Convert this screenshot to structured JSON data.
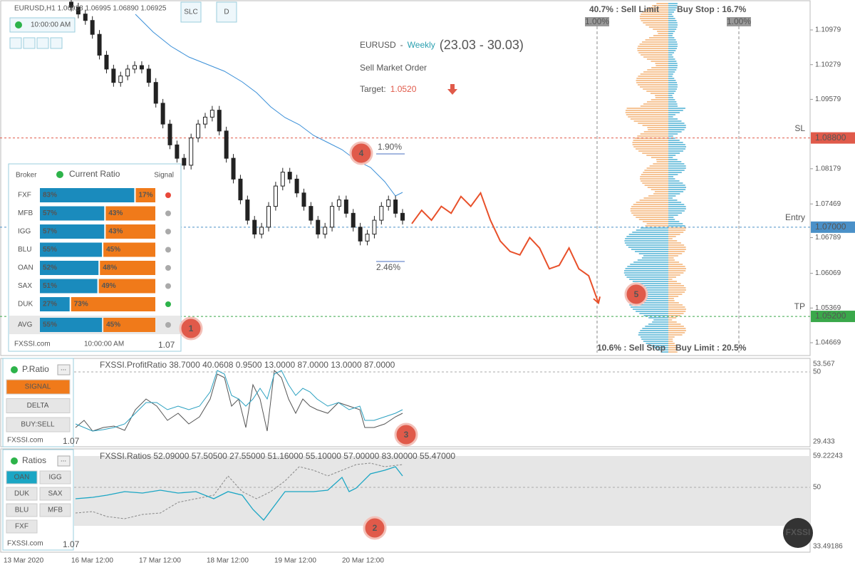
{
  "header": {
    "symbol_info": "EURUSD,H1 1.06923 1.06995 1.06890 1.06925",
    "time": "10:00:00 AM",
    "buttons": [
      "SLC",
      "D"
    ]
  },
  "forecast": {
    "symbol": "EURUSD",
    "separator": "-",
    "period": "Weekly",
    "dates": "(23.03 - 30.03)",
    "order": "Sell Market Order",
    "target_label": "Target:",
    "target": "1.0520"
  },
  "price_chart": {
    "ylim": [
      1.04396,
      1.11583
    ],
    "yticks": [
      1.10979,
      1.10279,
      1.09579,
      1.08179,
      1.07469,
      1.06789,
      1.06069,
      1.05369,
      1.04669
    ],
    "levels": [
      {
        "name": "SL",
        "price": {
          "value": 1.088,
          "label": "1.08800"
        },
        "color": "#e05a4a"
      },
      {
        "name": "Entry",
        "price": {
          "value": 1.07,
          "label": "1.07000"
        },
        "color": "#4a90c8"
      },
      {
        "name": "TP",
        "price": {
          "value": 1.052,
          "label": "1.05200"
        },
        "color": "#3aa84a"
      }
    ],
    "closes": [
      1.1144,
      1.113,
      1.1117,
      1.1089,
      1.1047,
      1.1019,
      1.0992,
      1.1005,
      1.1019,
      1.1026,
      1.1019,
      1.0992,
      1.095,
      1.0908,
      1.0866,
      1.0839,
      1.0825,
      1.088,
      1.0908,
      1.0922,
      1.0936,
      1.0894,
      1.0839,
      1.0797,
      1.0755,
      1.0714,
      1.0686,
      1.07,
      1.0742,
      1.0783,
      1.0811,
      1.0797,
      1.0769,
      1.0742,
      1.0714,
      1.0686,
      1.07,
      1.0742,
      1.0755,
      1.0728,
      1.07,
      1.0672,
      1.0686,
      1.0714,
      1.0742,
      1.0755,
      1.0728,
      1.0714
    ],
    "forecast_path": [
      1.0707,
      1.0734,
      1.0714,
      1.0742,
      1.0728,
      1.0762,
      1.0742,
      1.0769,
      1.0714,
      1.0672,
      1.0651,
      1.0644,
      1.0679,
      1.0658,
      1.0616,
      1.0623,
      1.0658,
      1.0616,
      1.0602,
      1.0547
    ],
    "annotations": [
      "1.90%",
      "2.46%"
    ],
    "dates": [
      "13 Mar 2020",
      "16 Mar 12:00",
      "17 Mar 12:00",
      "18 Mar 12:00",
      "19 Mar 12:00",
      "20 Mar 12:00"
    ]
  },
  "order_book": {
    "sell_limit": "40.7% : Sell Limit",
    "buy_stop": "Buy Stop : 16.7%",
    "sell_stop": "10.6% : Sell Stop",
    "buy_limit": "Buy Limit : 20.5%",
    "step_left": "1.00%",
    "step_right": "1.00%"
  },
  "badges": [
    "1",
    "2",
    "3",
    "4",
    "5"
  ],
  "ratio_panel": {
    "header": [
      "Broker",
      "Current Ratio",
      "Signal"
    ],
    "rows": [
      {
        "broker": "FXF",
        "buy": 83,
        "buy_label": "83%",
        "sell": 17,
        "sell_label": "17%",
        "signal_color": "#e8483a"
      },
      {
        "broker": "MFB",
        "buy": 57,
        "buy_label": "57%",
        "sell": 43,
        "sell_label": "43%",
        "signal_color": "#aaaaaa"
      },
      {
        "broker": "IGG",
        "buy": 57,
        "buy_label": "57%",
        "sell": 43,
        "sell_label": "43%",
        "signal_color": "#aaaaaa"
      },
      {
        "broker": "BLU",
        "buy": 55,
        "buy_label": "55%",
        "sell": 45,
        "sell_label": "45%",
        "signal_color": "#aaaaaa"
      },
      {
        "broker": "OAN",
        "buy": 52,
        "buy_label": "52%",
        "sell": 48,
        "sell_label": "48%",
        "signal_color": "#aaaaaa"
      },
      {
        "broker": "SAX",
        "buy": 51,
        "buy_label": "51%",
        "sell": 49,
        "sell_label": "49%",
        "signal_color": "#aaaaaa"
      },
      {
        "broker": "DUK",
        "buy": 27,
        "buy_label": "27%",
        "sell": 73,
        "sell_label": "73%",
        "signal_color": "#2db34a"
      }
    ],
    "avg": {
      "broker": "AVG",
      "buy": 55,
      "buy_label": "55%",
      "sell": 45,
      "sell_label": "45%",
      "signal_color": "#aaaaaa"
    },
    "site": "FXSSI.com",
    "time": "10:00:00 AM",
    "version": "1.07"
  },
  "profit_panel": {
    "title": "P.Ratio",
    "menu": "...",
    "buttons": [
      "SIGNAL",
      "DELTA",
      "BUY:SELL"
    ],
    "site": "FXSSI.com",
    "version": "1.07",
    "caption": "FXSSI.ProfitRatio 38.7000 40.0608 0.9500 13.0000 87.0000 13.0000 87.0000",
    "axis": [
      "53.567",
      "50",
      "29.433"
    ]
  },
  "ratios_panel": {
    "title": "Ratios",
    "menu": "...",
    "buttons": [
      "OAN",
      "IGG",
      "DUK",
      "SAX",
      "BLU",
      "MFB",
      "FXF"
    ],
    "site": "FXSSI.com",
    "version": "1.07",
    "caption": "FXSSI.Ratios 52.09000 57.50500 27.55000 51.16000 55.10000 57.00000 83.00000 55.47000",
    "axis": [
      "59.22243",
      "50",
      "33.49186"
    ]
  },
  "logo": "FXSSI"
}
